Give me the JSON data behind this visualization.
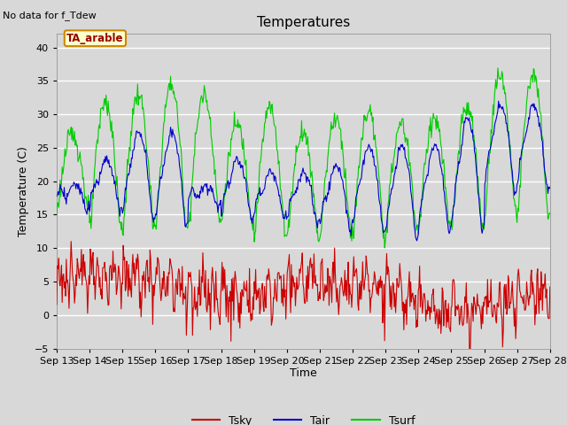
{
  "title": "Temperatures",
  "xlabel": "Time",
  "ylabel": "Temperature (C)",
  "ylim": [
    -5,
    42
  ],
  "yticks": [
    -5,
    0,
    5,
    10,
    15,
    20,
    25,
    30,
    35,
    40
  ],
  "note": "No data for f_Tdew",
  "box_label": "TA_arable",
  "legend": [
    "Tsky",
    "Tair",
    "Tsurf"
  ],
  "line_colors": [
    "#cc0000",
    "#0000cc",
    "#00cc00"
  ],
  "bg_color": "#d8d8d8",
  "xtick_labels": [
    "Sep 13",
    "Sep 14",
    "Sep 15",
    "Sep 16",
    "Sep 17",
    "Sep 18",
    "Sep 19",
    "Sep 20",
    "Sep 21",
    "Sep 22",
    "Sep 23",
    "Sep 24",
    "Sep 25",
    "Sep 26",
    "Sep 27",
    "Sep 28"
  ],
  "duration_days": 15,
  "n_points": 720
}
